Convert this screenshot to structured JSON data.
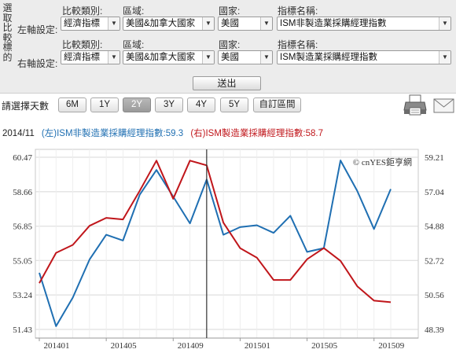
{
  "form": {
    "side_title": [
      "選",
      "取",
      "比",
      "較",
      "標",
      "的"
    ],
    "left_row": {
      "row_label": "左軸設定:",
      "compare_label": "比較類別:",
      "compare_value": "經濟指標",
      "region_label": "區域:",
      "region_value": "美國&加拿大國家",
      "country_label": "國家:",
      "country_value": "美國",
      "indicator_label": "指標名稱:",
      "indicator_value": "ISM非製造業採購經理指數"
    },
    "right_row": {
      "row_label": "右軸設定:",
      "compare_label": "比較類別:",
      "compare_value": "經濟指標",
      "region_label": "區域:",
      "region_value": "美國&加拿大國家",
      "country_label": "國家:",
      "country_value": "美國",
      "indicator_label": "指標名稱:",
      "indicator_value": "ISM製造業採購經理指數"
    },
    "submit_label": "送出"
  },
  "range": {
    "label": "請選擇天數",
    "options": [
      "6M",
      "1Y",
      "2Y",
      "3Y",
      "4Y",
      "5Y",
      "自訂區間"
    ],
    "active": "2Y"
  },
  "icons": {
    "print": "printer-icon",
    "mail": "mail-icon"
  },
  "legend": {
    "date": "2014/11",
    "left_text": "(左)ISM非製造業採購經理指數:59.3",
    "right_text": "(右)ISM製造業採購經理指數:58.7"
  },
  "colors": {
    "left_series": "#1f6fb2",
    "right_series": "#c0161b",
    "cursor": "#333333",
    "grid": "#d8d8d8",
    "active_range": "#a9a9a9"
  },
  "chart_data": {
    "type": "line",
    "watermark": "© cnYES鉅亨網",
    "x": [
      "201401",
      "201402",
      "201403",
      "201404",
      "201405",
      "201406",
      "201407",
      "201408",
      "201409",
      "201410",
      "201411",
      "201412",
      "201501",
      "201502",
      "201503",
      "201504",
      "201505",
      "201506",
      "201507",
      "201508",
      "201509",
      "201510"
    ],
    "x_tick_labels": [
      "201401",
      "201405",
      "201409",
      "201501",
      "201505",
      "201509"
    ],
    "y_left": {
      "ticks": [
        "51.43",
        "53.24",
        "55.05",
        "56.85",
        "58.66",
        "60.47"
      ],
      "range": [
        51.43,
        60.47
      ]
    },
    "y_right": {
      "ticks": [
        "48.39",
        "50.56",
        "52.72",
        "54.88",
        "57.04",
        "59.21"
      ],
      "range": [
        48.39,
        59.21
      ]
    },
    "grid": true,
    "cursor_x": "201411",
    "series": [
      {
        "name": "(左)ISM非製造業採購經理指數",
        "axis": "left",
        "values": [
          54.4,
          51.6,
          53.1,
          55.1,
          56.4,
          56.1,
          58.5,
          59.8,
          58.4,
          57.0,
          59.3,
          56.4,
          56.8,
          56.9,
          56.5,
          57.4,
          55.5,
          55.7,
          60.3,
          58.7,
          56.7,
          58.8
        ]
      },
      {
        "name": "(右)ISM製造業採購經理指數",
        "axis": "right",
        "values": [
          51.3,
          53.2,
          53.7,
          54.9,
          55.4,
          55.3,
          57.1,
          59.0,
          56.6,
          59.0,
          58.7,
          55.1,
          53.5,
          52.9,
          51.5,
          51.5,
          52.8,
          53.5,
          52.7,
          51.1,
          50.2,
          50.1
        ]
      }
    ]
  }
}
